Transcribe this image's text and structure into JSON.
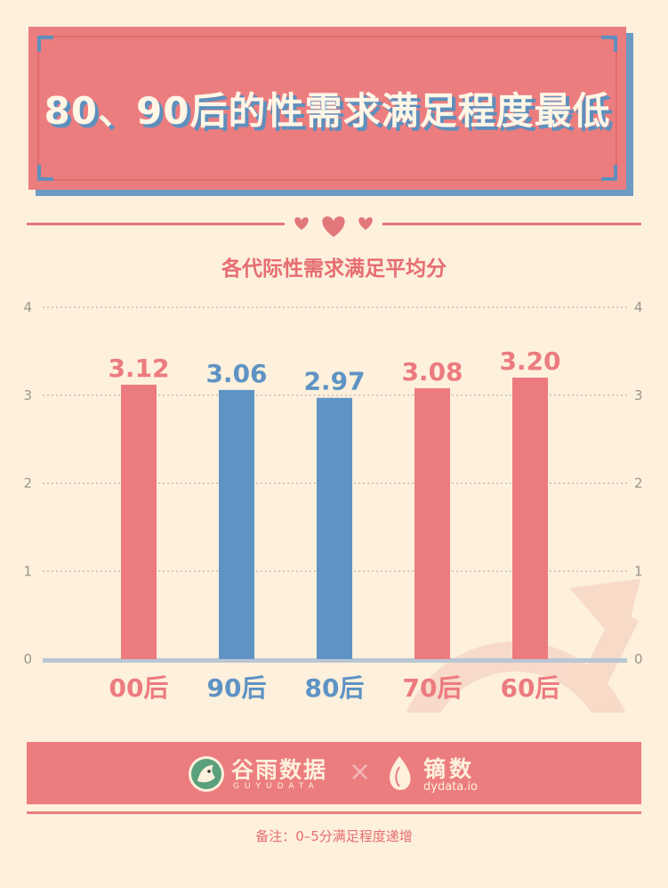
{
  "header": {
    "title": "80、90后的性需求满足程度最低"
  },
  "chart_data": {
    "type": "bar",
    "title": "各代际性需求满足平均分",
    "categories": [
      "00后",
      "90后",
      "80后",
      "70后",
      "60后"
    ],
    "values": [
      3.12,
      3.06,
      2.97,
      3.08,
      3.2
    ],
    "value_labels": [
      "3.12",
      "3.06",
      "2.97",
      "3.08",
      "3.20"
    ],
    "highlight": [
      false,
      true,
      true,
      false,
      false
    ],
    "ylim": [
      0,
      4
    ],
    "yticks": [
      "0",
      "1",
      "2",
      "3",
      "4"
    ],
    "grid": true,
    "colors": {
      "default": "#ec7b80",
      "highlight": "#5e93c4"
    }
  },
  "footer": {
    "brand_left_cn": "谷雨数据",
    "brand_left_en": "GUYUDATA",
    "separator": "×",
    "brand_right_cn": "镝数",
    "brand_right_en": "dydata.io",
    "note": "备注：0–5分满足程度递增"
  }
}
